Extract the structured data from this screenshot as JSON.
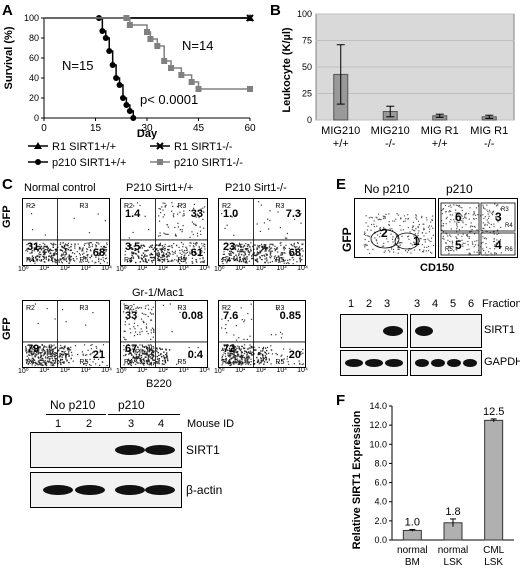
{
  "panels": {
    "A": "A",
    "B": "B",
    "C": "C",
    "D": "D",
    "E": "E",
    "F": "F"
  },
  "panelA": {
    "ylabel": "Survival (%)",
    "xlabel": "Day",
    "yticks": [
      "0",
      "20",
      "40",
      "60",
      "80",
      "100"
    ],
    "xticks": [
      "0",
      "15",
      "30",
      "45",
      "60"
    ],
    "annot_n15": "N=15",
    "annot_n14": "N=14",
    "annot_p": "p< 0.0001",
    "legend": [
      "R1 SIRT1+/+",
      "R1 SIRT1-/-",
      "p210 SIRT1+/+",
      "p210 SIRT1-/-"
    ],
    "chart_data": {
      "type": "line",
      "xlabel": "Day",
      "ylabel": "Survival (%)",
      "xlim": [
        0,
        60
      ],
      "ylim": [
        0,
        100
      ],
      "series": [
        {
          "name": "R1 SIRT1+/+",
          "x": [
            0,
            60
          ],
          "y": [
            100,
            100
          ]
        },
        {
          "name": "R1 SIRT1-/-",
          "x": [
            0,
            60
          ],
          "y": [
            100,
            100
          ]
        },
        {
          "name": "p210 SIRT1+/+",
          "x": [
            0,
            16,
            17,
            18,
            19,
            20,
            21,
            22,
            23,
            24,
            25,
            26
          ],
          "y": [
            100,
            100,
            87,
            80,
            67,
            53,
            40,
            33,
            20,
            13,
            7,
            0
          ]
        },
        {
          "name": "p210 SIRT1-/-",
          "x": [
            0,
            24,
            25,
            30,
            31,
            33,
            35,
            37,
            40,
            43,
            45,
            60
          ],
          "y": [
            100,
            100,
            93,
            86,
            79,
            72,
            57,
            50,
            43,
            36,
            29,
            29
          ]
        }
      ]
    }
  },
  "panelB": {
    "ylabel": "Leukocyte (K/µl)",
    "yticks": [
      "0",
      "25",
      "50",
      "75",
      "100"
    ],
    "categories": [
      [
        "MIG210",
        "+/+"
      ],
      [
        "MIG210",
        "-/-"
      ],
      [
        "MIG R1",
        "+/+"
      ],
      [
        "MIG R1",
        "-/-"
      ]
    ],
    "chart_data": {
      "type": "bar",
      "categories": [
        "MIG210 +/+",
        "MIG210 -/-",
        "MIG R1 +/+",
        "MIG R1 -/-"
      ],
      "values": [
        43,
        8,
        4,
        3
      ],
      "errors": [
        28,
        5,
        1.5,
        1.5
      ],
      "ylabel": "Leukocyte (K/µl)",
      "ylim": [
        0,
        100
      ]
    }
  },
  "panelC": {
    "col_titles": [
      "Normal control",
      "P210 Sirt1+/+",
      "P210 Sirt1-/-"
    ],
    "ylabel": "GFP",
    "xlabel_top": "Gr-1/Mac1",
    "xlabel_bottom": "B220",
    "axis_ticks": [
      "10⁰",
      "10¹",
      "10²",
      "10³",
      "10⁴"
    ],
    "region_labels": [
      "R2",
      "R3",
      "R4",
      "R5"
    ],
    "top_values": [
      [
        "",
        "",
        "31",
        "68"
      ],
      [
        "1.4",
        "33",
        "3.5",
        "61"
      ],
      [
        "1.0",
        "7.3",
        "23",
        "68"
      ]
    ],
    "bottom_values": [
      [
        "",
        "",
        "79",
        "21"
      ],
      [
        "33",
        "0.08",
        "67",
        "0.4"
      ],
      [
        "7.6",
        "0.85",
        "72",
        "20"
      ]
    ]
  },
  "panelD": {
    "group1": "No p210",
    "group2": "p210",
    "lanes": [
      "1",
      "2",
      "3",
      "4"
    ],
    "lane_label": "Mouse ID",
    "rows": [
      "SIRT1",
      "β-actin"
    ]
  },
  "panelE": {
    "titles": [
      "No p210",
      "p210"
    ],
    "ylabel": "GFP",
    "xlabel": "CD150",
    "facs_nums_left": [
      "2",
      "1"
    ],
    "facs_nums_right": [
      "6",
      "3",
      "5",
      "4"
    ],
    "facs_regions_right": [
      "R3",
      "R4",
      "R5",
      "R6"
    ],
    "fraction_label": "Fraction",
    "lanes_left": [
      "1",
      "2",
      "3"
    ],
    "lanes_right": [
      "3",
      "4",
      "5",
      "6"
    ],
    "rows": [
      "SIRT1",
      "GAPDH"
    ]
  },
  "panelF": {
    "ylabel": "Relative SIRT1 Expression",
    "yticks": [
      "0.0",
      "2.0",
      "4.0",
      "6.0",
      "8.0",
      "10.0",
      "12.0",
      "14.0"
    ],
    "categories": [
      [
        "normal",
        "BM"
      ],
      [
        "normal",
        "LSK"
      ],
      [
        "CML",
        "LSK"
      ]
    ],
    "value_labels": [
      "1.0",
      "1.8",
      "12.5"
    ],
    "chart_data": {
      "type": "bar",
      "categories": [
        "normal BM",
        "normal LSK",
        "CML LSK"
      ],
      "values": [
        1.0,
        1.8,
        12.5
      ],
      "errors": [
        0.1,
        0.4,
        0.15
      ],
      "ylabel": "Relative SIRT1 Expression",
      "ylim": [
        0,
        14
      ]
    }
  }
}
